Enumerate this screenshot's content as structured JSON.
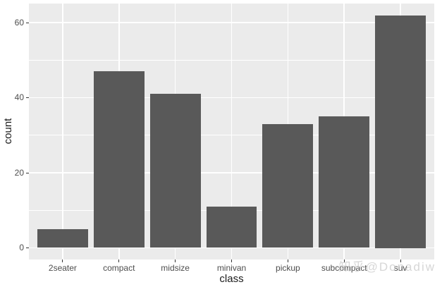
{
  "watermark": {
    "text": "知乎@Donadiw"
  },
  "chart_data": {
    "type": "bar",
    "title": "",
    "categories": [
      "2seater",
      "compact",
      "midsize",
      "minivan",
      "pickup",
      "subcompact",
      "suv"
    ],
    "values": [
      5,
      47,
      41,
      11,
      33,
      35,
      62
    ],
    "xlabel": "class",
    "ylabel": "count",
    "ylim": [
      0,
      62
    ],
    "y_major_breaks": [
      0,
      20,
      40,
      60
    ],
    "y_minor_breaks": [
      10,
      30,
      50
    ],
    "grid": "on",
    "legend": "none",
    "bar_fill": "#595959",
    "panel_bg": "#EBEBEB",
    "grid_color": "#FFFFFF",
    "tick_text_color": "#4D4D4D",
    "axis_title_color": "#1A1A1A",
    "tick_mark_color": "#333333",
    "watermark_color": "#C9C9C9",
    "outer_bg": "#FFFFFF"
  }
}
